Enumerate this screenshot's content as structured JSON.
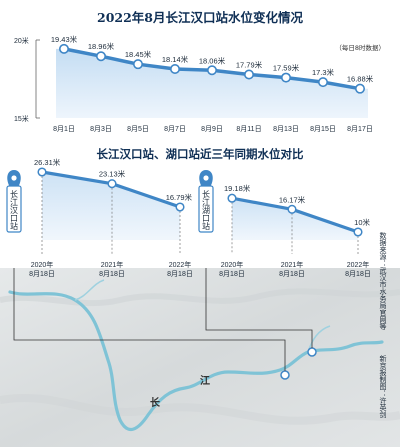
{
  "chart_data": [
    {
      "type": "line",
      "title": "2022年8月长江汉口站水位变化情况",
      "note": "（每日8时数据）",
      "ytick_labels": [
        "20米",
        "15米"
      ],
      "ylim": [
        15,
        20
      ],
      "categories": [
        "8月1日",
        "8月3日",
        "8月5日",
        "8月7日",
        "8月9日",
        "8月11日",
        "8月13日",
        "8月15日",
        "8月17日"
      ],
      "values": [
        19.43,
        18.96,
        18.45,
        18.14,
        18.06,
        17.79,
        17.59,
        17.3,
        16.88
      ],
      "value_labels": [
        "19.43米",
        "18.96米",
        "18.45米",
        "18.14米",
        "18.06米",
        "17.79米",
        "17.59米",
        "17.3米",
        "16.88米"
      ],
      "colors": {
        "line": "#3f86c6",
        "area_top": "#cfe3f6",
        "area_bottom": "#eef5fc"
      }
    },
    {
      "type": "line",
      "title": "长江汉口站、湖口站近三年同期水位对比",
      "panels": [
        {
          "station": "长江汉口站",
          "x": [
            "2020年 8月18日",
            "2021年 8月18日",
            "2022年 8月18日"
          ],
          "x_labels": [
            [
              "2020年",
              "8月18日"
            ],
            [
              "2021年",
              "8月18日"
            ],
            [
              "2022年",
              "8月18日"
            ]
          ],
          "values": [
            26.31,
            23.13,
            16.79
          ],
          "value_labels": [
            "26.31米",
            "23.13米",
            "16.79米"
          ]
        },
        {
          "station": "长江湖口站",
          "x": [
            "2020年 8月18日",
            "2021年 8月18日",
            "2022年 8月18日"
          ],
          "x_labels": [
            [
              "2020年",
              "8月18日"
            ],
            [
              "2021年",
              "8月18日"
            ],
            [
              "2022年",
              "8月18日"
            ]
          ],
          "values": [
            19.18,
            16.17,
            10
          ],
          "value_labels": [
            "19.18米",
            "16.17米",
            "10米"
          ]
        }
      ]
    }
  ],
  "map": {
    "river_labels": [
      "长",
      "江"
    ],
    "colors": {
      "land": "#dfe3e4",
      "river": "#7fc3d6"
    }
  },
  "side_notes": [
    "数据来源：武汉市水务局官网等",
    "新京报制图：许英剑"
  ]
}
